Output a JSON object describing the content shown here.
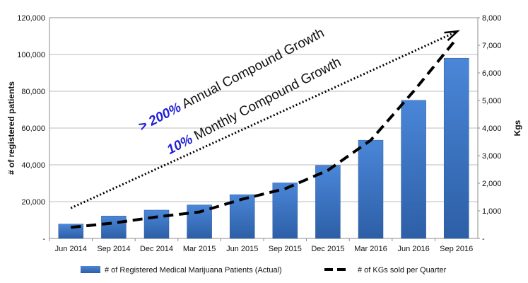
{
  "chart_data": {
    "type": "bar",
    "categories": [
      "Jun 2014",
      "Sep 2014",
      "Dec 2014",
      "Mar 2015",
      "Jun 2015",
      "Sep 2015",
      "Dec 2015",
      "Mar 2016",
      "Jun 2016",
      "Sep 2016"
    ],
    "series": [
      {
        "name": "# of Registered Medical Marijuana Patients (Actual)",
        "kind": "bar",
        "axis": "left",
        "color": "#3a72c4",
        "values": [
          7800,
          12200,
          15400,
          18200,
          23800,
          30200,
          39700,
          53400,
          75100,
          98000
        ]
      },
      {
        "name": "# of KGs sold per Quarter",
        "kind": "dashed-line",
        "axis": "right",
        "color": "#000000",
        "values": [
          400,
          560,
          780,
          960,
          1420,
          1800,
          2470,
          3560,
          5330,
          7230
        ]
      }
    ],
    "title": "",
    "ylabel": "# of registered patients",
    "y2label": "Kgs",
    "ylim": [
      0,
      120000
    ],
    "y2lim": [
      0,
      8000
    ],
    "yticks": [
      "-",
      "20,000",
      "40,000",
      "60,000",
      "80,000",
      "100,000",
      "120,000"
    ],
    "y2ticks": [
      "-",
      "1,000",
      "2,000",
      "3,000",
      "4,000",
      "5,000",
      "6,000",
      "7,000",
      "8,000"
    ],
    "grid": true,
    "legend": "bottom",
    "annotations": [
      {
        "highlight": "> 200%",
        "text": " Annual Compound Growth"
      },
      {
        "highlight": "10%",
        "text": " Monthly Compound Growth"
      }
    ],
    "trend_arrow": {
      "from": {
        "category": "Jun 2014",
        "value": 16500
      },
      "to": {
        "category": "Sep 2016",
        "value": 112000
      }
    }
  }
}
